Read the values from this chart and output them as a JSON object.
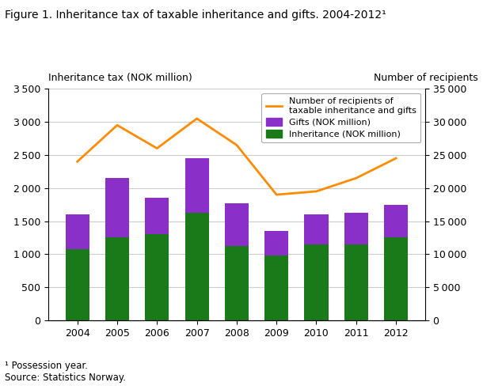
{
  "years": [
    2004,
    2005,
    2006,
    2007,
    2008,
    2009,
    2010,
    2011,
    2012
  ],
  "inheritance": [
    1075,
    1250,
    1300,
    1625,
    1125,
    975,
    1150,
    1150,
    1250
  ],
  "gifts": [
    525,
    900,
    550,
    825,
    650,
    375,
    450,
    475,
    500
  ],
  "recipients": [
    24000,
    29500,
    26000,
    30500,
    26500,
    19000,
    19500,
    21500,
    24500
  ],
  "bar_color_inheritance": "#1a7a1a",
  "bar_color_gifts": "#8B2FC9",
  "line_color": "#FF8C00",
  "title": "Figure 1. Inheritance tax of taxable inheritance and gifts. 2004-2012¹",
  "label_left": "Inheritance tax (NOK million)",
  "label_right": "Number of recipients",
  "ylim_left": [
    0,
    3500
  ],
  "ylim_right": [
    0,
    35000
  ],
  "yticks_left": [
    0,
    500,
    1000,
    1500,
    2000,
    2500,
    3000,
    3500
  ],
  "yticks_right": [
    0,
    5000,
    10000,
    15000,
    20000,
    25000,
    30000,
    35000
  ],
  "legend_line": "Number of recipients of\ntaxable inheritance and gifts",
  "legend_gifts": "Gifts (NOK million)",
  "legend_inheritance": "Inheritance (NOK million)",
  "footnote1": "¹ Possession year.",
  "footnote2": "Source: Statistics Norway.",
  "background_color": "#ffffff",
  "grid_color": "#cccccc"
}
